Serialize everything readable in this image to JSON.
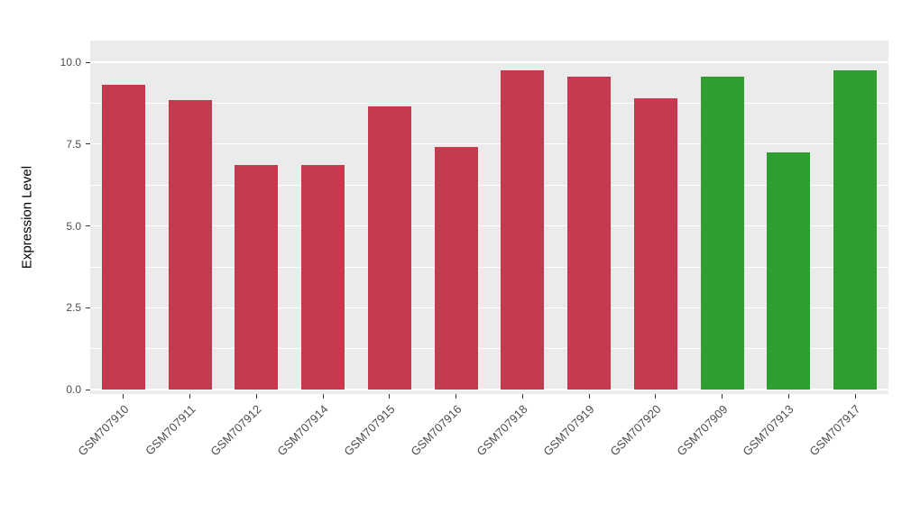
{
  "figure": {
    "background": "#FFFFFF",
    "panel_background": "#EBEBEB",
    "gridline_color": "#FFFFFF",
    "tick_text_color": "#4D4D4D",
    "axis_title_color": "#000000"
  },
  "chart_data": {
    "type": "bar",
    "title": "",
    "xlabel": "",
    "ylabel": "Expression Level",
    "ylim": [
      0,
      10.6
    ],
    "yticks": [
      0,
      2.5,
      5,
      7.5,
      10
    ],
    "ytick_labels": [
      "0.0",
      "2.5",
      "5.0",
      "7.5",
      "10.0"
    ],
    "yticks_minor": [
      1.25,
      3.75,
      6.25,
      8.75
    ],
    "grid": true,
    "legend_position": "none",
    "categories": [
      "GSM707910",
      "GSM707911",
      "GSM707912",
      "GSM707914",
      "GSM707915",
      "GSM707916",
      "GSM707918",
      "GSM707919",
      "GSM707920",
      "GSM707909",
      "GSM707913",
      "GSM707917"
    ],
    "values": [
      9.3,
      8.85,
      6.85,
      6.85,
      8.65,
      7.4,
      9.75,
      9.55,
      8.9,
      9.55,
      7.25,
      9.75
    ],
    "colors": [
      "#C43A4E",
      "#C43A4E",
      "#C43A4E",
      "#C43A4E",
      "#C43A4E",
      "#C43A4E",
      "#C43A4E",
      "#C43A4E",
      "#C43A4E",
      "#2E9E2E",
      "#2E9E2E",
      "#2E9E2E"
    ],
    "palette": {
      "red": "#C43A4E",
      "green": "#2E9E2E"
    }
  }
}
